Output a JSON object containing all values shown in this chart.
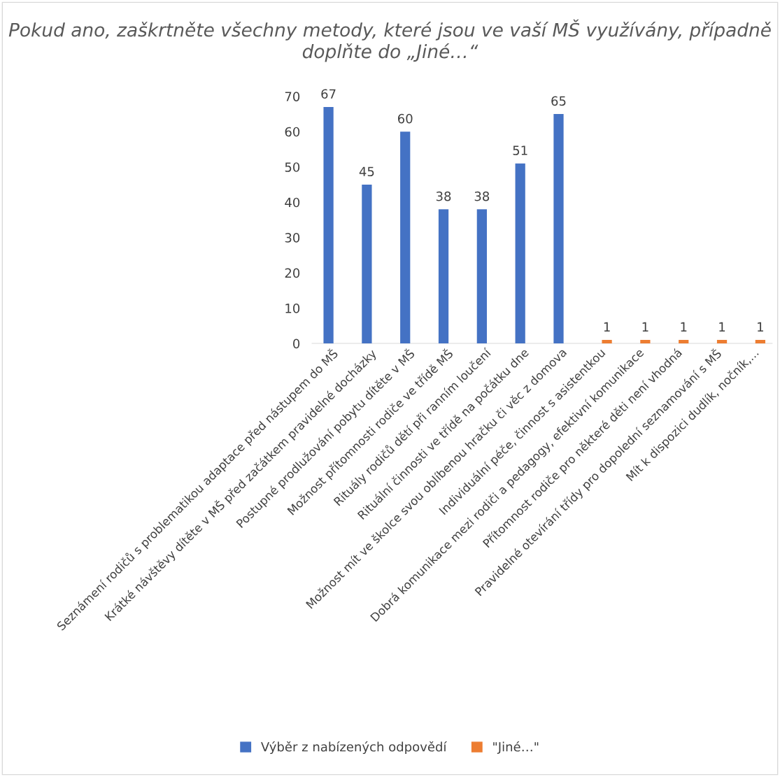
{
  "chart_data": {
    "type": "bar",
    "title": "Pokud ano, zaškrtněte všechny metody, které jsou ve vaší MŠ využívány, případně doplňte do „Jiné…“",
    "categories": [
      "Seznámení rodičů s problematikou adaptace před nástupem do MŠ",
      "Krátké návštěvy dítěte v MŠ před začátkem pravidelné docházky",
      "Postupné prodlužování pobytu dítěte v MŠ",
      "Možnost přítomnosti rodiče ve třídě MŠ",
      "Rituály rodičů dětí při ranním loučení",
      "Rituální činnosti ve třídě na počátku dne",
      "Možnost mít ve školce svou oblíbenou hračku či věc z domova",
      "Individuální péče, činnost s asistentkou",
      "Dobrá komunikace mezi rodiči a pedagogy, efektivní komunikace",
      "Přítomnost rodiče pro některé děti není vhodná",
      "Pravidelné otevírání třídy pro dopolední seznamování s MŠ",
      "Mít k dispozici dudlík, nočník,..."
    ],
    "series": [
      {
        "name": "Výběr z nabízených odpovědí",
        "color": "#4472c4",
        "values": [
          67,
          45,
          60,
          38,
          38,
          51,
          65,
          null,
          null,
          null,
          null,
          null
        ]
      },
      {
        "name": "\"Jiné…\"",
        "color": "#ed7d31",
        "values": [
          null,
          null,
          null,
          null,
          null,
          null,
          null,
          1,
          1,
          1,
          1,
          1
        ]
      }
    ],
    "ylim": [
      0,
      70
    ],
    "yticks": [
      0,
      10,
      20,
      30,
      40,
      50,
      60,
      70
    ],
    "grid": false,
    "legend": "bottom",
    "data_labels": true
  }
}
